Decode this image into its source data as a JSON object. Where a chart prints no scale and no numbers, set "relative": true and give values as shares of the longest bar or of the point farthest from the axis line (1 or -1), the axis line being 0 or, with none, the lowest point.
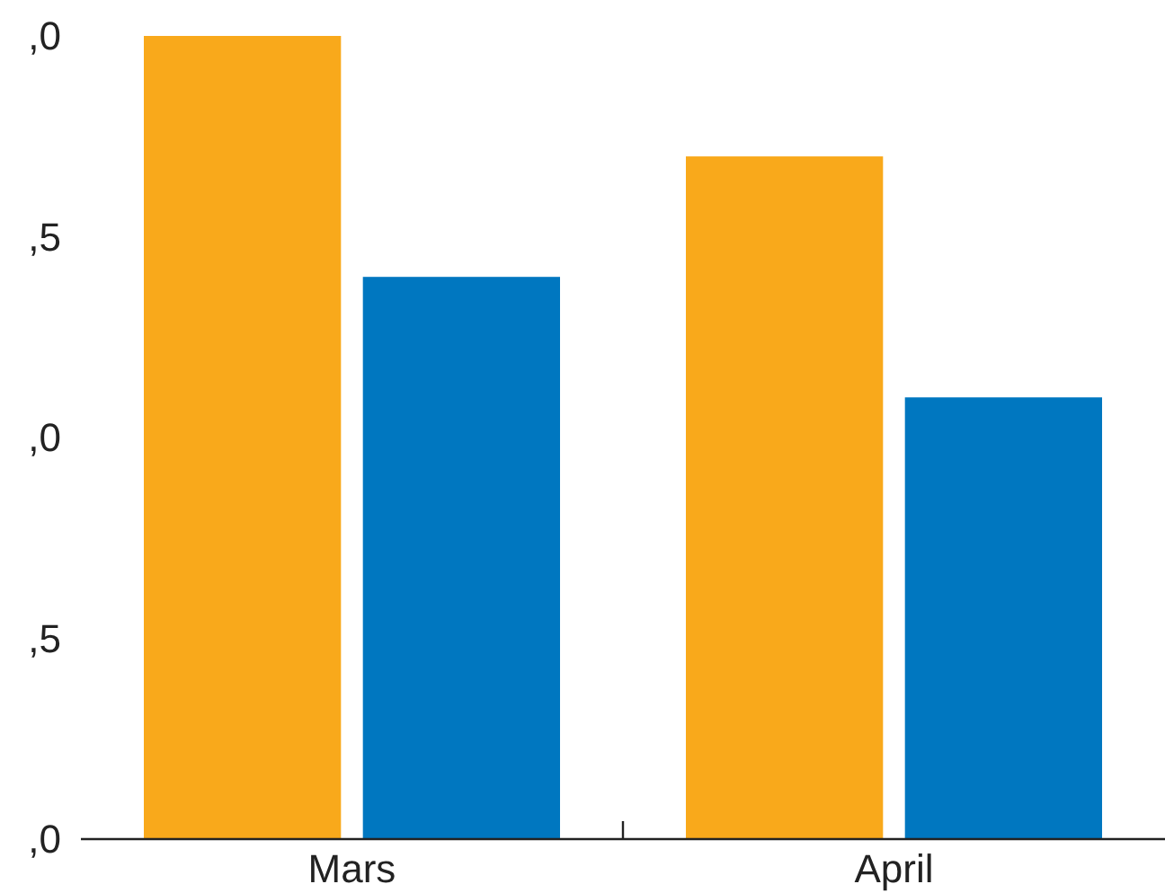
{
  "chart_data": {
    "type": "bar",
    "categories": [
      "Mars",
      "April"
    ],
    "relative": true,
    "series": [
      {
        "color": "#f9a91b",
        "values": [
          1,
          0.85
        ]
      },
      {
        "color": "#0077c0",
        "values": [
          0.7,
          0.55
        ]
      }
    ],
    "annotations": [
      ",0",
      ",5",
      ",0",
      ",5",
      ",0"
    ]
  }
}
